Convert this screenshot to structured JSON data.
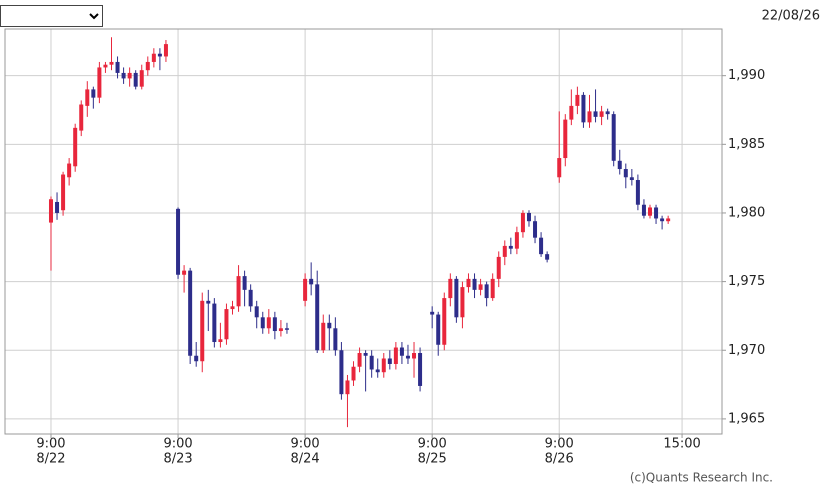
{
  "chart_data": {
    "type": "candlestick",
    "date_label": "22/08/26",
    "credit": "(c)Quants Research Inc.",
    "up_color": "#e8263c",
    "down_color": "#2d2d8a",
    "grid": true,
    "xlim": [
      -7.6,
      110.9
    ],
    "ylim": [
      1963.9,
      1993.4
    ],
    "xticks": [
      {
        "value": 0,
        "label": "9:00"
      },
      {
        "value": 21,
        "label": "9:00"
      },
      {
        "value": 42,
        "label": "9:00"
      },
      {
        "value": 63,
        "label": "9:00"
      },
      {
        "value": 84,
        "label": "9:00"
      },
      {
        "value": 104.3,
        "label": "15:00"
      }
    ],
    "x_date_labels": [
      "8/22",
      "8/23",
      "8/24",
      "8/25",
      "8/26"
    ],
    "yticks": [
      {
        "value": 1965,
        "label": "1,965"
      },
      {
        "value": 1970,
        "label": "1,970"
      },
      {
        "value": 1975,
        "label": "1,975"
      },
      {
        "value": 1980,
        "label": "1,980"
      },
      {
        "value": 1985,
        "label": "1,985"
      },
      {
        "value": 1990,
        "label": "1,990"
      }
    ],
    "x": [
      0,
      1,
      2,
      3,
      4,
      5,
      6,
      7,
      8,
      9,
      10,
      11,
      12,
      13,
      14,
      15,
      16,
      17,
      18,
      19,
      21,
      22,
      23,
      24,
      25,
      26,
      27,
      28,
      29,
      30,
      31,
      32,
      33,
      34,
      35,
      36,
      37,
      38,
      39,
      42,
      43,
      44,
      45,
      46,
      47,
      48,
      49,
      50,
      51,
      52,
      53,
      54,
      55,
      56,
      57,
      58,
      59,
      60,
      61,
      63,
      64,
      65,
      66,
      67,
      68,
      69,
      70,
      71,
      72,
      73,
      74,
      75,
      76,
      77,
      78,
      79,
      80,
      81,
      82,
      84,
      85,
      86,
      87,
      88,
      89,
      90,
      91,
      92,
      93,
      94,
      95,
      96,
      97,
      98,
      99,
      100,
      101,
      102
    ],
    "open": [
      1979.3,
      1980.8,
      1980.2,
      1982.6,
      1983.4,
      1986.0,
      1987.8,
      1989.0,
      1988.4,
      1990.6,
      1990.8,
      1991.0,
      1990.2,
      1989.8,
      1990.2,
      1989.2,
      1990.4,
      1991.0,
      1991.6,
      1991.4,
      1980.3,
      1975.5,
      1975.8,
      1969.6,
      1969.2,
      1973.6,
      1973.4,
      1970.6,
      1970.8,
      1973.0,
      1973.2,
      1975.4,
      1974.4,
      1973.2,
      1972.4,
      1971.6,
      1972.4,
      1971.4,
      1971.6,
      1973.6,
      1975.2,
      1974.8,
      1970.0,
      1972.0,
      1971.6,
      1970.0,
      1966.8,
      1967.8,
      1968.8,
      1969.8,
      1969.6,
      1968.6,
      1968.4,
      1969.4,
      1969.0,
      1970.2,
      1969.6,
      1969.4,
      1969.8,
      1972.8,
      1972.6,
      1970.4,
      1973.8,
      1975.2,
      1972.4,
      1974.6,
      1975.2,
      1974.4,
      1974.8,
      1973.8,
      1975.2,
      1976.8,
      1977.6,
      1977.4,
      1978.6,
      1980.0,
      1979.4,
      1978.2,
      1977.0,
      1982.6,
      1984.0,
      1986.8,
      1987.8,
      1988.6,
      1986.6,
      1987.4,
      1987.0,
      1987.4,
      1987.2,
      1983.8,
      1983.2,
      1982.6,
      1982.4,
      1980.6,
      1979.8,
      1980.4,
      1979.6,
      1979.4
    ],
    "high": [
      1981.2,
      1981.5,
      1983.0,
      1984.0,
      1986.5,
      1988.2,
      1989.6,
      1989.2,
      1991.0,
      1991.0,
      1992.8,
      1991.4,
      1990.6,
      1990.6,
      1990.4,
      1990.8,
      1991.4,
      1992.0,
      1992.0,
      1992.6,
      1980.4,
      1976.2,
      1976.0,
      1970.6,
      1974.2,
      1974.4,
      1973.8,
      1972.0,
      1973.4,
      1973.6,
      1976.2,
      1975.8,
      1974.8,
      1973.6,
      1972.8,
      1973.0,
      1972.8,
      1972.2,
      1972.0,
      1975.6,
      1976.4,
      1975.8,
      1972.6,
      1972.6,
      1972.4,
      1970.6,
      1968.2,
      1969.2,
      1970.2,
      1970.0,
      1970.0,
      1969.4,
      1969.8,
      1970.0,
      1970.6,
      1970.6,
      1970.4,
      1970.6,
      1970.2,
      1973.2,
      1972.8,
      1974.2,
      1975.6,
      1975.4,
      1975.0,
      1975.6,
      1975.6,
      1975.2,
      1975.0,
      1975.6,
      1977.2,
      1978.0,
      1978.2,
      1979.0,
      1980.2,
      1980.2,
      1979.8,
      1978.6,
      1977.2,
      1987.4,
      1987.2,
      1989.0,
      1989.2,
      1988.8,
      1988.6,
      1989.0,
      1987.8,
      1987.6,
      1987.4,
      1984.6,
      1983.6,
      1983.2,
      1982.8,
      1981.0,
      1980.6,
      1980.6,
      1979.8,
      1979.8
    ],
    "low": [
      1975.8,
      1979.5,
      1979.8,
      1982.0,
      1983.0,
      1985.6,
      1987.0,
      1987.6,
      1988.0,
      1990.2,
      1990.4,
      1989.8,
      1989.4,
      1989.2,
      1989.0,
      1989.0,
      1990.0,
      1990.6,
      1990.4,
      1991.0,
      1975.2,
      1974.2,
      1969.0,
      1968.8,
      1968.4,
      1971.4,
      1970.2,
      1970.2,
      1970.4,
      1972.6,
      1972.8,
      1973.2,
      1972.8,
      1971.6,
      1971.2,
      1971.2,
      1970.8,
      1971.0,
      1971.2,
      1973.2,
      1974.0,
      1969.8,
      1969.8,
      1970.0,
      1969.6,
      1966.4,
      1964.4,
      1967.4,
      1968.4,
      1967.0,
      1968.0,
      1968.0,
      1968.0,
      1968.6,
      1968.6,
      1969.0,
      1969.0,
      1968.0,
      1967.0,
      1971.6,
      1969.6,
      1970.0,
      1973.2,
      1972.0,
      1971.6,
      1974.2,
      1973.8,
      1974.0,
      1973.2,
      1973.6,
      1974.6,
      1976.2,
      1977.0,
      1977.0,
      1978.2,
      1979.0,
      1977.8,
      1976.8,
      1976.4,
      1982.2,
      1983.4,
      1986.4,
      1987.2,
      1986.2,
      1986.2,
      1986.6,
      1986.4,
      1986.8,
      1983.4,
      1982.8,
      1981.8,
      1982.0,
      1980.2,
      1979.6,
      1979.6,
      1979.2,
      1978.8,
      1979.2
    ],
    "close": [
      1981.0,
      1980.0,
      1982.8,
      1983.6,
      1986.2,
      1987.9,
      1989.0,
      1988.4,
      1990.6,
      1990.8,
      1991.0,
      1990.2,
      1989.8,
      1990.2,
      1989.2,
      1990.4,
      1991.0,
      1991.6,
      1991.4,
      1992.3,
      1975.5,
      1975.8,
      1969.6,
      1969.2,
      1973.6,
      1973.4,
      1970.6,
      1970.8,
      1973.0,
      1973.2,
      1975.4,
      1974.4,
      1973.2,
      1972.4,
      1971.6,
      1972.4,
      1971.4,
      1971.6,
      1971.5,
      1975.2,
      1974.8,
      1970.0,
      1972.0,
      1971.6,
      1970.0,
      1966.8,
      1967.8,
      1968.8,
      1969.8,
      1969.6,
      1968.6,
      1968.4,
      1969.4,
      1969.0,
      1970.2,
      1969.6,
      1969.4,
      1969.8,
      1967.4,
      1972.6,
      1970.4,
      1973.8,
      1975.2,
      1972.4,
      1974.6,
      1975.2,
      1974.4,
      1974.8,
      1973.8,
      1975.2,
      1976.8,
      1977.6,
      1977.4,
      1978.6,
      1980.0,
      1979.4,
      1978.2,
      1977.0,
      1976.6,
      1984.0,
      1986.8,
      1987.8,
      1988.6,
      1986.6,
      1987.4,
      1987.0,
      1987.4,
      1987.2,
      1983.8,
      1983.2,
      1982.6,
      1982.4,
      1980.6,
      1979.8,
      1980.4,
      1979.6,
      1979.4,
      1979.6
    ]
  }
}
